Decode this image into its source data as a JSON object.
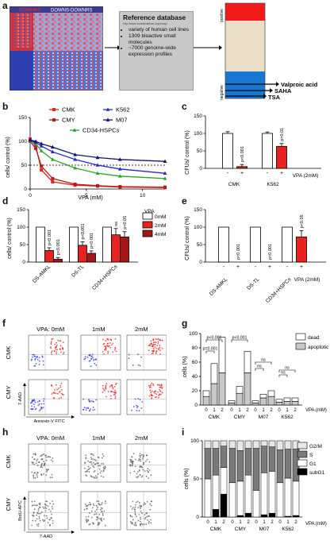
{
  "panel_labels": {
    "a": "a",
    "b": "b",
    "c": "c",
    "d": "d",
    "e": "e",
    "f": "f",
    "g": "g",
    "h": "h",
    "i": "i"
  },
  "panel_a": {
    "heatmap_labels": {
      "left": "DOWNRS",
      "right": "DOWNS-DOWNRS"
    },
    "reference": {
      "title": "Reference database",
      "url": "http://www.broadinstitute.org/cmap/",
      "bullets": [
        "variety of human cell lines",
        "1309 bioactive small molecules",
        "~7000 genome-wide expression profiles"
      ]
    },
    "ranked": {
      "positive": "positive",
      "negative": "negative",
      "hits": [
        "Valproic acid",
        "SAHA",
        "TSA"
      ]
    }
  },
  "chart_data": [
    {
      "panel": "b",
      "type": "line",
      "ylabel": "cells/ control (%)",
      "xlabel": "VPA (mM)",
      "ylim": [
        0,
        150
      ],
      "xlim": [
        0,
        12
      ],
      "yticks": [
        "0",
        "50",
        "100",
        "150"
      ],
      "xticks": [
        "0",
        "5",
        "10"
      ],
      "series": [
        {
          "name": "CMK",
          "color": "#e8231f",
          "marker": "square",
          "x": [
            0,
            0.5,
            1,
            2,
            4,
            6,
            8,
            12
          ],
          "y": [
            105,
            90,
            40,
            15,
            8,
            6,
            4,
            3
          ]
        },
        {
          "name": "CMY",
          "color": "#b51b1b",
          "marker": "square",
          "x": [
            0,
            0.5,
            1,
            2,
            4,
            6,
            8,
            12
          ],
          "y": [
            100,
            85,
            48,
            22,
            10,
            7,
            5,
            4
          ]
        },
        {
          "name": "CD34-HSPCs",
          "color": "#2ca32c",
          "marker": "triangle",
          "x": [
            0,
            0.5,
            1,
            2,
            4,
            6,
            8,
            12
          ],
          "y": [
            100,
            95,
            80,
            62,
            44,
            33,
            27,
            22
          ]
        },
        {
          "name": "K562",
          "color": "#2828cc",
          "marker": "triangle",
          "x": [
            0,
            0.5,
            1,
            2,
            4,
            6,
            8,
            12
          ],
          "y": [
            102,
            98,
            90,
            78,
            62,
            50,
            42,
            33
          ]
        },
        {
          "name": "M07",
          "color": "#141475",
          "marker": "triangle",
          "x": [
            0,
            0.5,
            1,
            2,
            4,
            6,
            8,
            12
          ],
          "y": [
            103,
            100,
            95,
            88,
            72,
            66,
            62,
            58
          ]
        }
      ]
    },
    {
      "panel": "c",
      "type": "bar",
      "ylabel": "CFUs/ control (%)",
      "ylim": [
        0,
        150
      ],
      "yticks": [
        "0",
        "50",
        "100",
        "150"
      ],
      "groups": [
        "CMK",
        "K562"
      ],
      "signs": [
        "-",
        "+",
        "-",
        "+"
      ],
      "legend": "VPA (2mM)",
      "values": [
        100,
        5,
        100,
        63
      ],
      "errors": [
        5,
        6,
        4,
        8
      ],
      "pvalues": [
        "",
        "p<0.001",
        "",
        "p=0.01"
      ],
      "colors": [
        "#ffffff",
        "#e8231f",
        "#ffffff",
        "#e8231f"
      ]
    },
    {
      "panel": "d",
      "type": "bar",
      "ylabel": "cells/ control (%)",
      "ylim": [
        0,
        150
      ],
      "yticks": [
        "0",
        "50",
        "100",
        "150"
      ],
      "groups": [
        "DS-AMKL",
        "DS-TL",
        "CD34+HSPCs"
      ],
      "legend_title": "VPA",
      "legend": [
        "0mM",
        "2mM",
        "4mM"
      ],
      "colors": [
        "#ffffff",
        "#e8231f",
        "#a01818"
      ],
      "values": [
        [
          100,
          33,
          8
        ],
        [
          100,
          48,
          25
        ],
        [
          100,
          78,
          72
        ]
      ],
      "errors": [
        [
          0,
          8,
          5
        ],
        [
          0,
          10,
          7
        ],
        [
          0,
          18,
          15
        ]
      ],
      "pvalues": [
        [
          "",
          "p<0.001",
          "p<0.001"
        ],
        [
          "",
          "p<0.001",
          "p<0.001"
        ],
        [
          "",
          "ns",
          "p<0.05"
        ]
      ]
    },
    {
      "panel": "e",
      "type": "bar",
      "ylabel": "CFUs/ control (%)",
      "ylim": [
        0,
        150
      ],
      "yticks": [
        "0",
        "50",
        "100",
        "150"
      ],
      "groups": [
        "DS-AMKL",
        "DS-TL",
        "CD34+HSPCs"
      ],
      "signs": [
        "-",
        "+",
        "-",
        "+",
        "-",
        "+"
      ],
      "legend": "VPA (2mM)",
      "values": [
        100,
        0,
        100,
        0,
        100,
        72
      ],
      "errors": [
        0,
        0,
        0,
        0,
        0,
        18
      ],
      "pvalues": [
        "",
        "p<0.001",
        "",
        "p<0.001",
        "",
        "p<0.05"
      ],
      "colors": [
        "#ffffff",
        "#e8231f",
        "#ffffff",
        "#e8231f",
        "#ffffff",
        "#e8231f"
      ]
    },
    {
      "panel": "g",
      "type": "bar",
      "ylabel": "cells (%)",
      "ylim": [
        0,
        100
      ],
      "yticks": [
        "0",
        "20",
        "40",
        "60",
        "80",
        "100"
      ],
      "groups": [
        "CMK",
        "CMY",
        "M07",
        "K562"
      ],
      "doses": [
        "0",
        "1",
        "2"
      ],
      "xlabel": "VPA (mM)",
      "legend": [
        "dead",
        "apoptotic"
      ],
      "dead": [
        [
          8,
          28,
          50
        ],
        [
          3,
          10,
          30
        ],
        [
          3,
          5,
          8
        ],
        [
          4,
          5,
          5
        ]
      ],
      "apoptotic": [
        [
          12,
          30,
          45
        ],
        [
          3,
          16,
          45
        ],
        [
          3,
          10,
          12
        ],
        [
          4,
          5,
          5
        ]
      ],
      "brackets": [
        {
          "from": [
            0,
            0
          ],
          "to": [
            0,
            1
          ],
          "label": "p=0.001"
        },
        {
          "from": [
            0,
            0
          ],
          "to": [
            0,
            2
          ],
          "label": "p<0.001"
        },
        {
          "from": [
            1,
            0
          ],
          "to": [
            1,
            2
          ],
          "label": "p<0.001"
        },
        {
          "from": [
            2,
            0
          ],
          "to": [
            2,
            1
          ],
          "label": "ns"
        },
        {
          "from": [
            2,
            0
          ],
          "to": [
            2,
            2
          ],
          "label": "ns"
        },
        {
          "from": [
            3,
            0
          ],
          "to": [
            3,
            1
          ],
          "label": "ns"
        },
        {
          "from": [
            3,
            0
          ],
          "to": [
            3,
            2
          ],
          "label": "ns"
        }
      ]
    },
    {
      "panel": "i",
      "type": "bar",
      "ylabel": "cells (%)",
      "ylim": [
        0,
        100
      ],
      "yticks": [
        "0",
        "50",
        "100"
      ],
      "groups": [
        "CMK",
        "CMY",
        "M07",
        "K562"
      ],
      "doses": [
        "0",
        "1",
        "2"
      ],
      "xlabel": "VPA (mM)",
      "legend": [
        "G2/M",
        "S",
        "G1",
        "subG1"
      ],
      "colors": [
        "#e8e8e8",
        "#7a7a7a",
        "#ffffff",
        "#000000"
      ],
      "subG1": [
        [
          0,
          10,
          30
        ],
        [
          0,
          2,
          5
        ],
        [
          0,
          3,
          5
        ],
        [
          0,
          1,
          2
        ]
      ],
      "G1": [
        [
          50,
          45,
          35
        ],
        [
          45,
          45,
          50
        ],
        [
          35,
          55,
          55
        ],
        [
          45,
          50,
          45
        ]
      ],
      "S": [
        [
          40,
          35,
          28
        ],
        [
          45,
          40,
          35
        ],
        [
          55,
          35,
          32
        ],
        [
          43,
          38,
          42
        ]
      ]
    }
  ],
  "panel_f": {
    "columns": [
      "VPA: 0mM",
      "1mM",
      "2mM"
    ],
    "rows": [
      "CMK",
      "CMY"
    ],
    "ylabel": "7-AAD",
    "xlabel": "Annexin-V FITC"
  },
  "panel_h": {
    "columns": [
      "VPA: 0mM",
      "1mM",
      "2mM"
    ],
    "rows": [
      "CMK",
      "CMY"
    ],
    "ylabel": "BrdU-APC",
    "xlabel": "7-AAD"
  }
}
